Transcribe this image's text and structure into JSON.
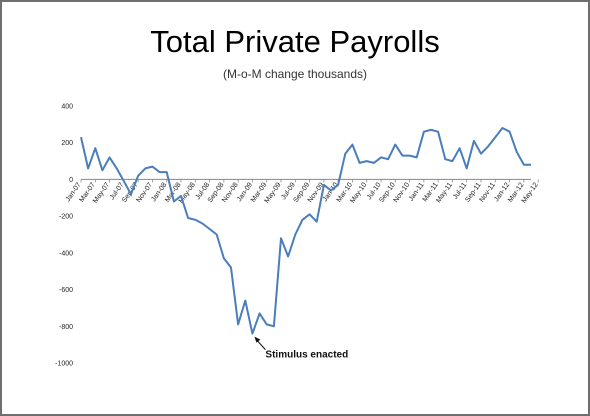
{
  "chart_data": {
    "type": "line",
    "title": "Total Private Payrolls",
    "subtitle": "(M-o-M change thousands)",
    "xlabel": "",
    "ylabel": "",
    "ylim": [
      -1000,
      400
    ],
    "yticks": [
      400,
      200,
      0,
      -200,
      -400,
      -600,
      -800,
      -1000
    ],
    "grid": false,
    "legend": "none",
    "x_tick_labels": [
      "Jan-07",
      "Mar-07",
      "May-07",
      "Jul-07",
      "Sep-07",
      "Nov-07",
      "Jan-08",
      "Mar-08",
      "May-08",
      "Jul-08",
      "Sep-08",
      "Nov-08",
      "Jan-09",
      "Mar-09",
      "May-09",
      "Jul-09",
      "Sep-09",
      "Nov-09",
      "Jan-10",
      "Mar-10",
      "May-10",
      "Jul-10",
      "Sep-10",
      "Nov-10",
      "Jan-11",
      "Mar-11",
      "May-11",
      "Jul-11",
      "Sep-11",
      "Nov-11",
      "Jan-12",
      "Mar-12",
      "May-12"
    ],
    "series": [
      {
        "color": "#4a7ebb",
        "values": [
          230,
          60,
          170,
          50,
          120,
          60,
          -10,
          -80,
          20,
          60,
          70,
          40,
          40,
          -120,
          -90,
          -210,
          -220,
          -240,
          -270,
          -300,
          -430,
          -480,
          -790,
          -660,
          -840,
          -730,
          -790,
          -800,
          -320,
          -420,
          -300,
          -220,
          -190,
          -230,
          -30,
          -60,
          -30,
          140,
          190,
          90,
          100,
          90,
          120,
          110,
          190,
          130,
          130,
          120,
          260,
          270,
          260,
          110,
          100,
          170,
          60,
          210,
          140,
          180,
          230,
          280,
          260,
          150,
          80,
          80
        ]
      }
    ],
    "annotations": [
      {
        "text": "Stimulus enacted",
        "x_index": 24,
        "y": -840
      }
    ]
  }
}
